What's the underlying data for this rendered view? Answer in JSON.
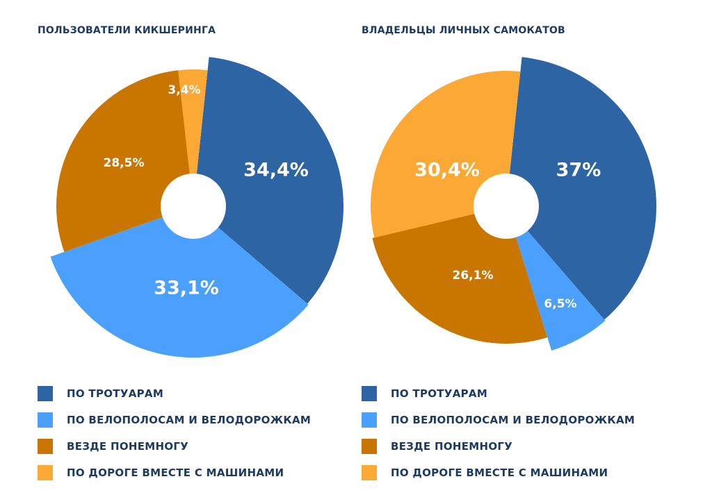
{
  "colors": {
    "sidewalk": "#2c64a4",
    "bike": "#4aa0fc",
    "everywhere": "#c87600",
    "road": "#fba934",
    "text": "#1b3a64"
  },
  "chart_data": [
    {
      "type": "pie",
      "title": "ПОЛЬЗОВАТЕЛИ КИКШЕРИНГА",
      "categories": [
        "ПО ТРОТУАРАМ",
        "ПО ВЕЛОПОЛОСАМ И ВЕЛОДОРОЖКАМ",
        "ВЕЗДЕ ПОНЕМНОГУ",
        "ПО ДОРОГЕ ВМЕСТЕ С МАШИНАМИ"
      ],
      "values": [
        34.4,
        33.1,
        28.5,
        3.4
      ],
      "labels": [
        "34,4%",
        "33,1%",
        "28,5%",
        "3,4%"
      ],
      "legend": "bottom"
    },
    {
      "type": "pie",
      "title": "ВЛАДЕЛЬЦЫ ЛИЧНЫХ САМОКАТОВ",
      "categories": [
        "ПО ТРОТУАРАМ",
        "ПО ВЕЛОПОЛОСАМ И ВЕЛОДОРОЖКАМ",
        "ВЕЗДЕ ПОНЕМНОГУ",
        "ПО ДОРОГЕ ВМЕСТЕ С МАШИНАМИ"
      ],
      "values": [
        37,
        6.5,
        26.1,
        30.4
      ],
      "labels": [
        "37%",
        "6,5%",
        "26,1%",
        "30,4%"
      ],
      "legend": "bottom"
    }
  ]
}
